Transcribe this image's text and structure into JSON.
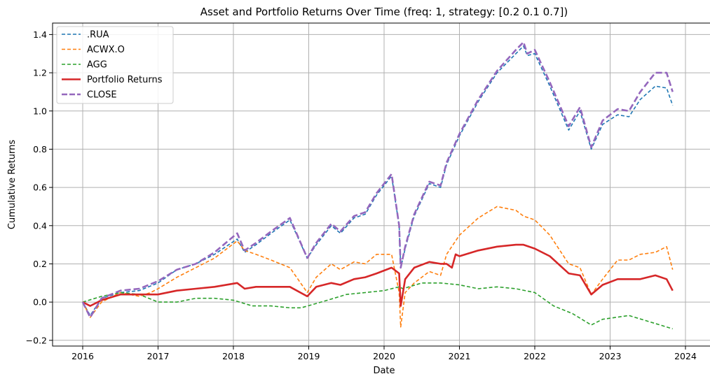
{
  "chart_data": {
    "type": "line",
    "title": "Asset and Portfolio Returns Over Time (freq: 1, strategy: [0.2 0.1 0.7])",
    "xlabel": "Date",
    "ylabel": "Cumulative Returns",
    "xlim": [
      2015.6,
      2024.4
    ],
    "ylim": [
      -0.23,
      1.46
    ],
    "x_ticks": [
      2016,
      2017,
      2018,
      2019,
      2020,
      2021,
      2022,
      2023,
      2024
    ],
    "x_tick_labels": [
      "2016",
      "2017",
      "2018",
      "2019",
      "2020",
      "2021",
      "2022",
      "2023",
      "2024"
    ],
    "y_ticks": [
      -0.2,
      0.0,
      0.2,
      0.4,
      0.6,
      0.8,
      1.0,
      1.2,
      1.4
    ],
    "y_tick_labels": [
      "−0.2",
      "0.0",
      "0.2",
      "0.4",
      "0.6",
      "0.8",
      "1.0",
      "1.2",
      "1.4"
    ],
    "grid": true,
    "legend_position": "top-left",
    "series": [
      {
        "name": ".RUA",
        "color": "#1f77b4",
        "style": "dashed",
        "width": 1.6,
        "x": [
          2016.0,
          2016.1,
          2016.25,
          2016.5,
          2016.75,
          2017.0,
          2017.25,
          2017.5,
          2017.75,
          2018.05,
          2018.15,
          2018.3,
          2018.5,
          2018.75,
          2018.98,
          2019.1,
          2019.3,
          2019.42,
          2019.6,
          2019.75,
          2019.9,
          2020.1,
          2020.2,
          2020.22,
          2020.28,
          2020.4,
          2020.6,
          2020.75,
          2020.83,
          2021.0,
          2021.25,
          2021.5,
          2021.75,
          2021.85,
          2021.9,
          2022.0,
          2022.2,
          2022.45,
          2022.6,
          2022.75,
          2022.9,
          2023.1,
          2023.25,
          2023.4,
          2023.6,
          2023.75,
          2023.83
        ],
        "y": [
          0.0,
          -0.07,
          0.02,
          0.05,
          0.06,
          0.1,
          0.17,
          0.2,
          0.25,
          0.33,
          0.26,
          0.3,
          0.36,
          0.43,
          0.23,
          0.3,
          0.4,
          0.36,
          0.44,
          0.46,
          0.56,
          0.66,
          0.4,
          0.18,
          0.28,
          0.45,
          0.62,
          0.6,
          0.72,
          0.87,
          1.05,
          1.2,
          1.3,
          1.34,
          1.29,
          1.3,
          1.13,
          0.9,
          1.0,
          0.8,
          0.93,
          0.98,
          0.97,
          1.06,
          1.13,
          1.12,
          1.03
        ]
      },
      {
        "name": "ACWX.O",
        "color": "#ff7f0e",
        "style": "dashed",
        "width": 1.6,
        "x": [
          2016.0,
          2016.1,
          2016.25,
          2016.5,
          2016.75,
          2016.9,
          2017.0,
          2017.25,
          2017.5,
          2017.75,
          2018.05,
          2018.15,
          2018.3,
          2018.5,
          2018.75,
          2018.98,
          2019.1,
          2019.3,
          2019.42,
          2019.6,
          2019.75,
          2019.9,
          2020.1,
          2020.2,
          2020.22,
          2020.28,
          2020.4,
          2020.6,
          2020.75,
          2020.83,
          2021.0,
          2021.25,
          2021.5,
          2021.75,
          2021.85,
          2022.0,
          2022.2,
          2022.45,
          2022.6,
          2022.75,
          2022.9,
          2023.1,
          2023.25,
          2023.4,
          2023.6,
          2023.75,
          2023.83
        ],
        "y": [
          0.0,
          -0.08,
          0.0,
          0.05,
          0.03,
          0.05,
          0.07,
          0.13,
          0.18,
          0.23,
          0.32,
          0.27,
          0.25,
          0.22,
          0.18,
          0.05,
          0.13,
          0.2,
          0.17,
          0.21,
          0.2,
          0.25,
          0.25,
          0.05,
          -0.13,
          0.05,
          0.1,
          0.16,
          0.14,
          0.25,
          0.35,
          0.44,
          0.5,
          0.48,
          0.45,
          0.43,
          0.35,
          0.2,
          0.18,
          0.04,
          0.12,
          0.22,
          0.22,
          0.25,
          0.26,
          0.29,
          0.17
        ]
      },
      {
        "name": "AGG",
        "color": "#2ca02c",
        "style": "dashed",
        "width": 1.6,
        "x": [
          2016.0,
          2016.25,
          2016.5,
          2016.75,
          2017.0,
          2017.25,
          2017.5,
          2017.75,
          2018.0,
          2018.25,
          2018.5,
          2018.75,
          2018.9,
          2019.25,
          2019.5,
          2019.75,
          2020.0,
          2020.2,
          2020.25,
          2020.5,
          2020.75,
          2021.0,
          2021.25,
          2021.5,
          2021.75,
          2022.0,
          2022.25,
          2022.5,
          2022.75,
          2022.9,
          2023.25,
          2023.5,
          2023.75,
          2023.83
        ],
        "y": [
          0.0,
          0.03,
          0.05,
          0.04,
          0.0,
          0.0,
          0.02,
          0.02,
          0.01,
          -0.02,
          -0.02,
          -0.03,
          -0.03,
          0.01,
          0.04,
          0.05,
          0.06,
          0.08,
          0.07,
          0.1,
          0.1,
          0.09,
          0.07,
          0.08,
          0.07,
          0.05,
          -0.02,
          -0.06,
          -0.12,
          -0.09,
          -0.07,
          -0.1,
          -0.13,
          -0.14
        ]
      },
      {
        "name": "Portfolio Returns",
        "color": "#d62728",
        "style": "solid",
        "width": 2.6,
        "x": [
          2016.0,
          2016.1,
          2016.25,
          2016.5,
          2016.75,
          2017.0,
          2017.25,
          2017.5,
          2017.75,
          2018.05,
          2018.15,
          2018.3,
          2018.5,
          2018.75,
          2018.98,
          2019.1,
          2019.3,
          2019.42,
          2019.6,
          2019.75,
          2019.9,
          2020.1,
          2020.2,
          2020.22,
          2020.28,
          2020.4,
          2020.6,
          2020.75,
          2020.83,
          2020.9,
          2020.95,
          2021.0,
          2021.25,
          2021.5,
          2021.75,
          2021.85,
          2022.0,
          2022.2,
          2022.45,
          2022.6,
          2022.75,
          2022.9,
          2023.1,
          2023.25,
          2023.4,
          2023.6,
          2023.75,
          2023.83
        ],
        "y": [
          0.0,
          -0.02,
          0.01,
          0.04,
          0.04,
          0.04,
          0.06,
          0.07,
          0.08,
          0.1,
          0.07,
          0.08,
          0.08,
          0.08,
          0.03,
          0.08,
          0.1,
          0.09,
          0.12,
          0.13,
          0.15,
          0.18,
          0.15,
          -0.02,
          0.12,
          0.18,
          0.21,
          0.2,
          0.2,
          0.18,
          0.25,
          0.24,
          0.27,
          0.29,
          0.3,
          0.3,
          0.28,
          0.24,
          0.15,
          0.14,
          0.04,
          0.09,
          0.12,
          0.12,
          0.12,
          0.14,
          0.12,
          0.06
        ]
      },
      {
        "name": "CLOSE",
        "color": "#9467bd",
        "style": "dashed",
        "width": 2.6,
        "x": [
          2016.0,
          2016.1,
          2016.25,
          2016.5,
          2016.75,
          2017.0,
          2017.25,
          2017.5,
          2017.75,
          2018.05,
          2018.15,
          2018.3,
          2018.5,
          2018.75,
          2018.98,
          2019.1,
          2019.3,
          2019.42,
          2019.6,
          2019.75,
          2019.9,
          2020.1,
          2020.2,
          2020.22,
          2020.28,
          2020.4,
          2020.6,
          2020.75,
          2020.83,
          2021.0,
          2021.25,
          2021.5,
          2021.75,
          2021.85,
          2021.9,
          2022.0,
          2022.2,
          2022.45,
          2022.6,
          2022.75,
          2022.9,
          2023.1,
          2023.25,
          2023.4,
          2023.6,
          2023.75,
          2023.83
        ],
        "y": [
          0.0,
          -0.08,
          0.02,
          0.06,
          0.07,
          0.11,
          0.17,
          0.2,
          0.26,
          0.36,
          0.27,
          0.31,
          0.37,
          0.44,
          0.23,
          0.31,
          0.41,
          0.37,
          0.45,
          0.47,
          0.57,
          0.67,
          0.4,
          0.18,
          0.29,
          0.46,
          0.63,
          0.61,
          0.73,
          0.88,
          1.06,
          1.21,
          1.32,
          1.36,
          1.3,
          1.32,
          1.15,
          0.92,
          1.02,
          0.81,
          0.95,
          1.01,
          1.0,
          1.1,
          1.2,
          1.2,
          1.1
        ]
      }
    ]
  }
}
